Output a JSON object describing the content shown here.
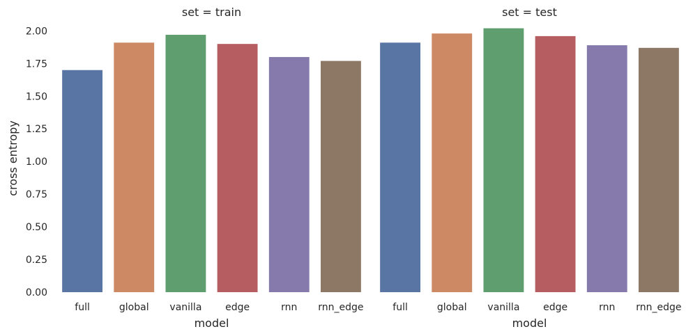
{
  "chart_data": [
    {
      "type": "bar",
      "title": "set = train",
      "xlabel": "model",
      "ylabel": "cross entropy",
      "categories": [
        "full",
        "global",
        "vanilla",
        "edge",
        "rnn",
        "rnn_edge"
      ],
      "values": [
        1.7,
        1.91,
        1.97,
        1.9,
        1.8,
        1.77
      ],
      "colors": [
        "#5875a4",
        "#cc8963",
        "#5f9e6e",
        "#b55d60",
        "#857aab",
        "#8d7866"
      ],
      "ylim": [
        0,
        2.05
      ],
      "yticks": [
        "0.00",
        "0.25",
        "0.50",
        "0.75",
        "1.00",
        "1.25",
        "1.50",
        "1.75",
        "2.00"
      ],
      "grid": false
    },
    {
      "type": "bar",
      "title": "set = test",
      "xlabel": "model",
      "ylabel": "",
      "categories": [
        "full",
        "global",
        "vanilla",
        "edge",
        "rnn",
        "rnn_edge"
      ],
      "values": [
        1.91,
        1.98,
        2.02,
        1.96,
        1.89,
        1.87
      ],
      "colors": [
        "#5875a4",
        "#cc8963",
        "#5f9e6e",
        "#b55d60",
        "#857aab",
        "#8d7866"
      ],
      "ylim": [
        0,
        2.05
      ],
      "yticks": [],
      "grid": false
    }
  ]
}
